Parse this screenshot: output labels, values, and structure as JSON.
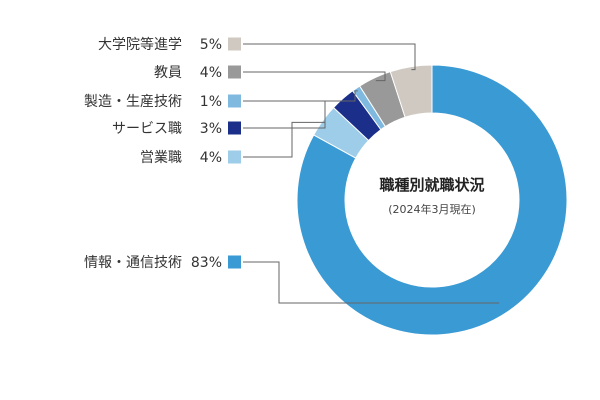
{
  "chart_data": {
    "type": "pie",
    "title": "職種別就職状況",
    "subtitle": "(2024年3月現在)",
    "unit": "%",
    "categories": [
      "情報・通信技術",
      "営業職",
      "サービス職",
      "製造・生産技術",
      "教員",
      "大学院等進学"
    ],
    "values": [
      83,
      4,
      3,
      1,
      4,
      5
    ],
    "display_values": [
      "83",
      "4",
      "3",
      "1",
      "4",
      "5"
    ],
    "colors": [
      "#3a9ad3",
      "#9dcde9",
      "#1b2f8a",
      "#7fb9e0",
      "#999999",
      "#d0c9c2"
    ],
    "donut": true,
    "legend_placement": "left"
  }
}
